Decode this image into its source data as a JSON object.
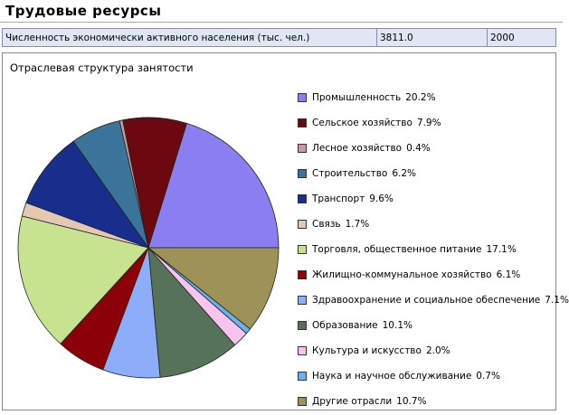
{
  "header": {
    "title": "Трудовые ресурсы"
  },
  "stats": {
    "label": "Численность экономически активного населения (тыс. чел.)",
    "value": "3811.0",
    "year": "2000"
  },
  "chart_data": {
    "type": "pie",
    "title": "Отраслевая структура занятости",
    "legend_position": "right",
    "unit": "%",
    "slices": [
      {
        "label": "Промышленность",
        "value": 20.2,
        "display": "20.2%",
        "color": "#8a7ef0"
      },
      {
        "label": "Сельское хозяйство",
        "value": 7.9,
        "display": "7.9%",
        "color": "#6b0810"
      },
      {
        "label": "Лесное хозяйство",
        "value": 0.4,
        "display": "0.4%",
        "color": "#c99aa2"
      },
      {
        "label": "Строительство",
        "value": 6.2,
        "display": "6.2%",
        "color": "#3b7499"
      },
      {
        "label": "Транспорт",
        "value": 9.6,
        "display": "9.6%",
        "color": "#182d8c"
      },
      {
        "label": "Связь",
        "value": 1.7,
        "display": "1.7%",
        "color": "#e5c8b2"
      },
      {
        "label": "Торговля, общественное питание",
        "value": 17.1,
        "display": "17.1%",
        "color": "#c7e38f"
      },
      {
        "label": "Жилищно-коммунальное хозяйство",
        "value": 6.1,
        "display": "6.1%",
        "color": "#8c0008"
      },
      {
        "label": "Здравоохранение и социальное обеспечение",
        "value": 7.1,
        "display": "7.1%",
        "color": "#8caef8"
      },
      {
        "label": "Образование",
        "value": 10.1,
        "display": "10.1%",
        "color": "#56735a"
      },
      {
        "label": "Культура и искусство",
        "value": 2.0,
        "display": "2.0%",
        "color": "#f7c4ee"
      },
      {
        "label": "Наука и научное обслуживание",
        "value": 0.7,
        "display": "0.7%",
        "color": "#6ab2ec"
      },
      {
        "label": "Другие отрасли",
        "value": 10.7,
        "display": "10.7%",
        "color": "#9e9356"
      }
    ]
  }
}
